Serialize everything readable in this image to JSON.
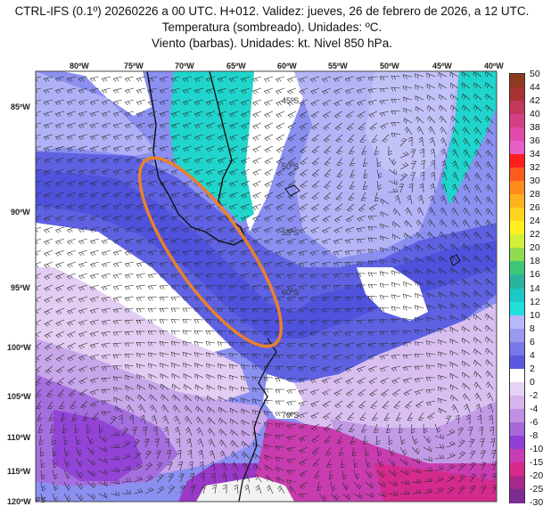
{
  "header": {
    "line1": "CTRL-IFS (0.1º) 20260226 a 00 UTC. H+012. Validez: jueves, 26 de febrero de 2026, a 12 UTC.",
    "line2": "Temperatura (sombreado). Unidades: ºC.",
    "line3": "Viento (barbas). Unidades: kt. Nivel 850 hPa."
  },
  "map": {
    "top_labels": [
      "80ºW",
      "75ºW",
      "70ºW",
      "65ºW",
      "60ºW",
      "55ºW",
      "50ºW",
      "45ºW",
      "40ºW"
    ],
    "left_labels": [
      "85ºW",
      "90ºW",
      "95ºW",
      "100ºW",
      "105ºW",
      "110ºW",
      "115ºW",
      "120ºW"
    ],
    "grid_labels": [
      "45ºS",
      "50ºS",
      "55ºS",
      "60ºS",
      "70ºS"
    ],
    "corner_mark": "PS",
    "highlight_color": "#e8802e",
    "land_mask_color": "#ffffff"
  },
  "colorbar": {
    "ticks": [
      "50",
      "44",
      "42",
      "40",
      "38",
      "36",
      "34",
      "32",
      "30",
      "28",
      "26",
      "24",
      "22",
      "20",
      "18",
      "16",
      "14",
      "12",
      "10",
      "8",
      "6",
      "4",
      "2",
      "0",
      "-2",
      "-4",
      "-6",
      "-8",
      "-10",
      "-15",
      "-20",
      "-25",
      "-30"
    ],
    "colors": [
      "#8b3a1e",
      "#a83232",
      "#c13a5e",
      "#d43f86",
      "#e04aa9",
      "#e85fc8",
      "#ff1e1e",
      "#ff5a1e",
      "#ff8a1e",
      "#ffb01e",
      "#ffd21e",
      "#fff01e",
      "#d2ef3c",
      "#8fdc50",
      "#3cc878",
      "#2ab4a0",
      "#1ec8c8",
      "#20e0dc",
      "#b8b8f8",
      "#9a9af2",
      "#7878ea",
      "#5a5ae0",
      "#ffffff",
      "#e6d2f2",
      "#d6b4ec",
      "#c090e4",
      "#a868dc",
      "#9040d4",
      "#c83cb4",
      "#d82a8c",
      "#a8288c",
      "#7c2c94"
    ]
  }
}
